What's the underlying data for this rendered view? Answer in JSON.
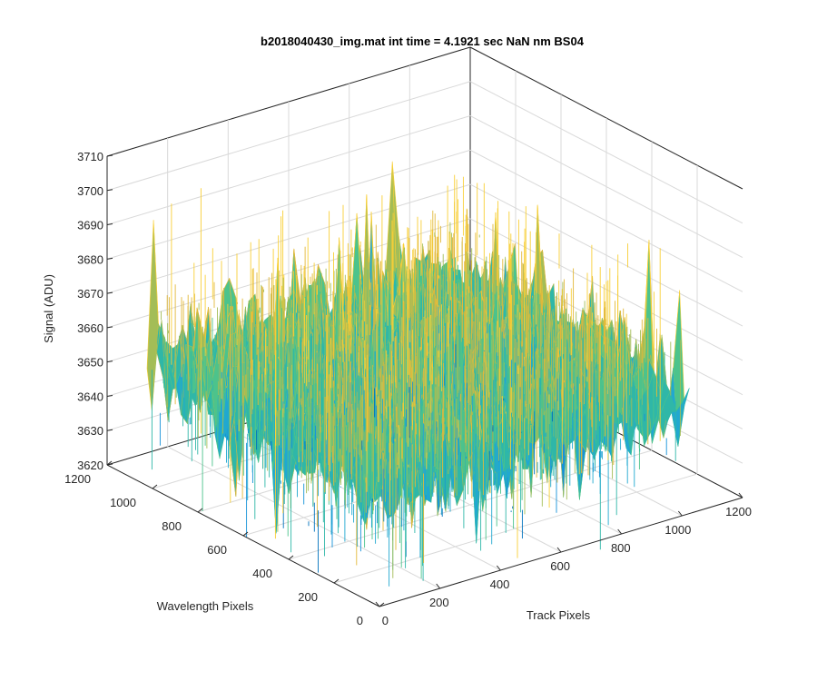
{
  "chart_data": {
    "type": "surface",
    "title": "b2018040430_img.mat int time = 4.1921 sec  NaN nm BS04",
    "xlabel": "Track Pixels",
    "ylabel": "Wavelength Pixels",
    "zlabel": "Signal (ADU)",
    "xlim": [
      0,
      1200
    ],
    "ylim": [
      0,
      1200
    ],
    "zlim": [
      3620,
      3710
    ],
    "x_ticks": [
      "0",
      "200",
      "400",
      "600",
      "800",
      "1000",
      "1200"
    ],
    "y_ticks": [
      "0",
      "200",
      "400",
      "600",
      "800",
      "1000",
      "1200"
    ],
    "z_ticks": [
      "3620",
      "3630",
      "3640",
      "3650",
      "3660",
      "3670",
      "3680",
      "3690",
      "3700",
      "3710"
    ],
    "data_extent": {
      "x": [
        0,
        1024
      ],
      "y": [
        0,
        1024
      ]
    },
    "signal_mean": 3655,
    "signal_typical_range": [
      3630,
      3685
    ],
    "signal_outlier_range": [
      3615,
      3707
    ],
    "grid": true,
    "colormap": "parula",
    "colors": [
      "#0072bd",
      "#1592d8",
      "#21a8d0",
      "#2fb7a8",
      "#4cc38c",
      "#a3bd57",
      "#e2b83a",
      "#f8cf37"
    ],
    "axes_color": "#262626",
    "grid_color": "#d9d9d9"
  }
}
